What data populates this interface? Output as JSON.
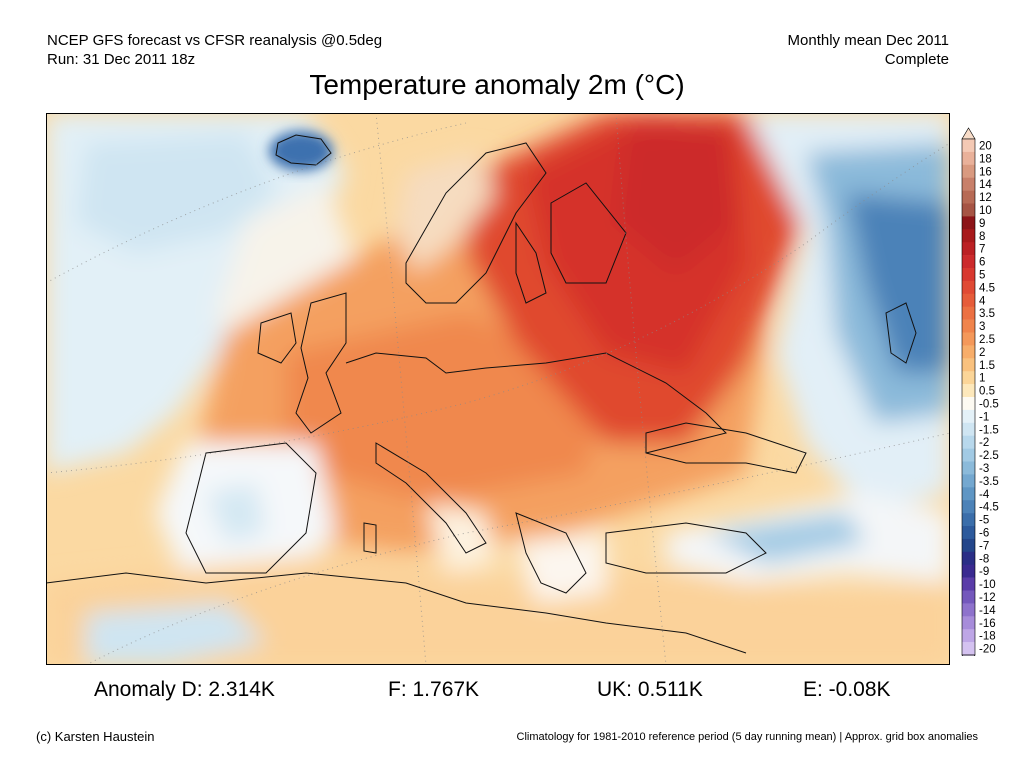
{
  "header": {
    "line1_left": "NCEP GFS forecast vs CFSR reanalysis @0.5deg",
    "line2_left": "Run: 31 Dec 2011 18z",
    "line1_right": "Monthly mean Dec 2011",
    "line2_right": "Complete"
  },
  "title": "Temperature anomaly 2m (°C)",
  "colorbar": {
    "labels": [
      "20",
      "18",
      "16",
      "14",
      "12",
      "10",
      "9",
      "8",
      "7",
      "6",
      "5",
      "4.5",
      "4",
      "3.5",
      "3",
      "2.5",
      "2",
      "1.5",
      "1",
      "0.5",
      "-0.5",
      "-1",
      "-1.5",
      "-2",
      "-2.5",
      "-3",
      "-3.5",
      "-4",
      "-4.5",
      "-5",
      "-6",
      "-7",
      "-8",
      "-9",
      "-10",
      "-12",
      "-14",
      "-16",
      "-18",
      "-20"
    ],
    "colors": [
      "#f4c9b4",
      "#e9b19a",
      "#d99a80",
      "#c8806a",
      "#b76a55",
      "#a65444",
      "#8c1418",
      "#a81a1c",
      "#bb2024",
      "#cc2a2c",
      "#d8382f",
      "#e04a34",
      "#e65c3a",
      "#ec7042",
      "#f0844c",
      "#f4985a",
      "#f7ad6a",
      "#f9c17e",
      "#fbd598",
      "#fde8bb",
      "#fdfaf2",
      "#e4f1f8",
      "#cfe5f2",
      "#b8d8ec",
      "#a2cae4",
      "#8bbada",
      "#74a8d0",
      "#5f96c4",
      "#4c82b8",
      "#3b6eaa",
      "#2d5a9c",
      "#24468a",
      "#2a2e86",
      "#3a2a90",
      "#5a3ca8",
      "#7458bc",
      "#8e72cc",
      "#a78cda",
      "#bea6e6",
      "#d4c2f0"
    ],
    "top_arrow_color": "#f8dcc8",
    "bottom_arrow_color": "#e4d8f6"
  },
  "stats": {
    "d": "Anomaly D: 2.314K",
    "f": "F: 1.767K",
    "uk": "UK: 0.511K",
    "e": "E: -0.08K"
  },
  "footer": {
    "left": "(c) Karsten Haustein",
    "right": "Climatology for 1981-2010 reference period (5 day running mean) | Approx. grid box anomalies"
  }
}
